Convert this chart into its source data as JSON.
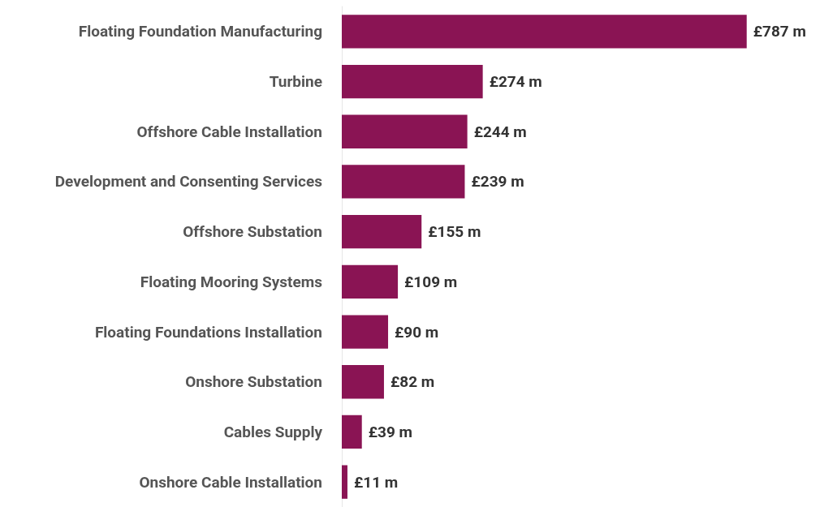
{
  "chart_data": {
    "type": "bar",
    "orientation": "horizontal",
    "categories": [
      "Floating Foundation Manufacturing",
      "Turbine",
      "Offshore Cable Installation",
      "Development and Consenting Services",
      "Offshore Substation",
      "Floating Mooring Systems",
      "Floating Foundations Installation",
      "Onshore Substation",
      "Cables Supply",
      "Onshore Cable Installation"
    ],
    "values": [
      787,
      274,
      244,
      239,
      155,
      109,
      90,
      82,
      39,
      11
    ],
    "value_labels": [
      "£787 m",
      "£274 m",
      "£244 m",
      "£239 m",
      "£155 m",
      "£109 m",
      "£90 m",
      "£82 m",
      "£39 m",
      "£11 m"
    ],
    "color": "#8a1454"
  }
}
